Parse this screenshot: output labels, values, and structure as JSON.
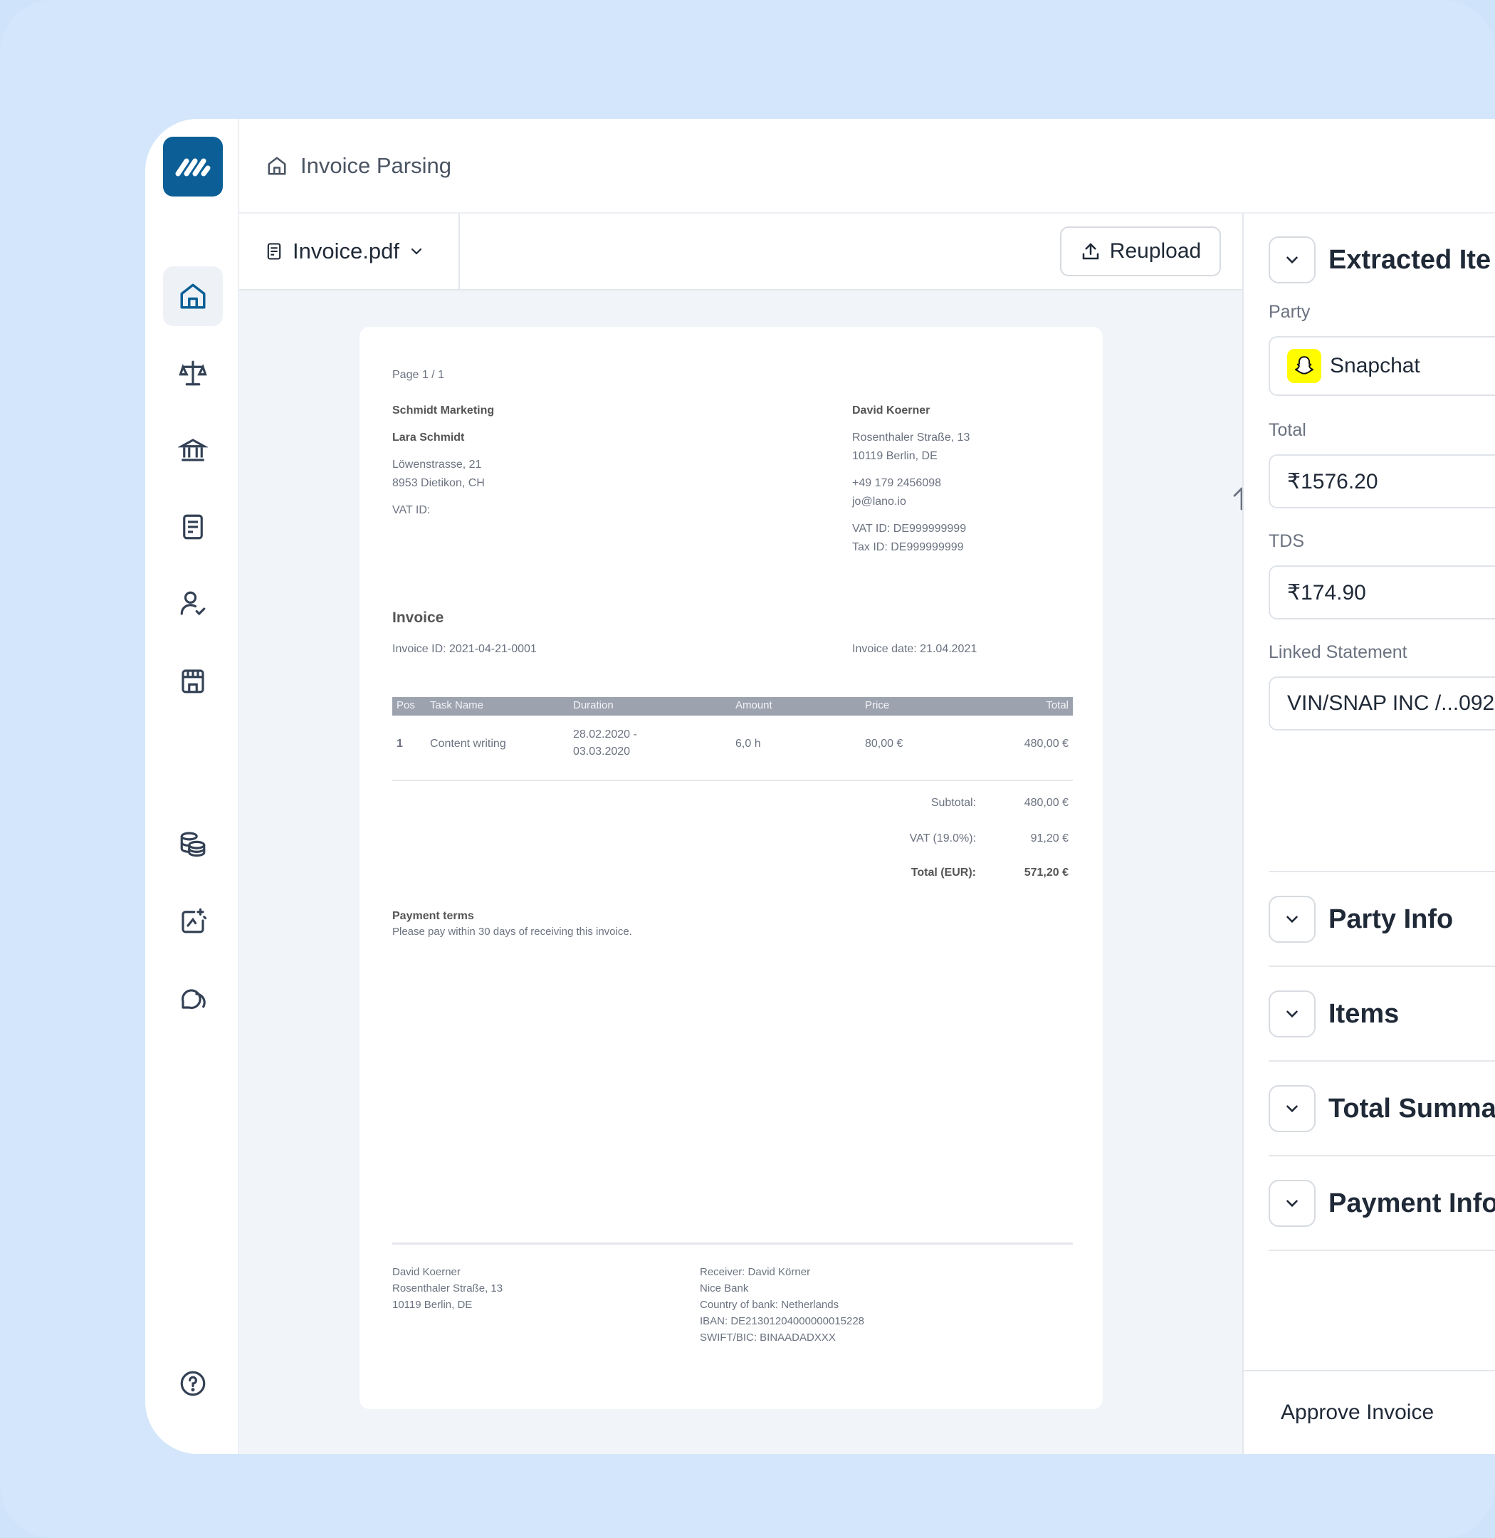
{
  "topbar": {
    "title": "Invoice Parsing",
    "icon": "home-icon"
  },
  "toolbar": {
    "file_name": "Invoice.pdf",
    "reupload_label": "Reupload"
  },
  "sidebar": {
    "items": [
      {
        "name": "home",
        "icon": "home-icon",
        "active": true
      },
      {
        "name": "legal",
        "icon": "scales-icon"
      },
      {
        "name": "bank",
        "icon": "bank-icon"
      },
      {
        "name": "documents",
        "icon": "document-icon"
      },
      {
        "name": "users",
        "icon": "user-check-icon"
      },
      {
        "name": "store",
        "icon": "store-icon"
      },
      {
        "name": "finance",
        "icon": "coins-icon"
      },
      {
        "name": "sparkle",
        "icon": "sparkle-icon"
      },
      {
        "name": "chat",
        "icon": "chat-icon"
      },
      {
        "name": "help",
        "icon": "help-icon"
      }
    ]
  },
  "invoice": {
    "page": "Page 1 / 1",
    "sender": {
      "company": "Schmidt Marketing",
      "name": "Lara Schmidt",
      "street": "Löwenstrasse, 21",
      "city": "8953 Dietikon, CH",
      "vat": "VAT ID:"
    },
    "recipient": {
      "name": "David Koerner",
      "street": "Rosenthaler Straße, 13",
      "city": "10119 Berlin, DE",
      "phone": "+49 179 2456098",
      "email": "jo@lano.io",
      "vat": "VAT ID: DE999999999",
      "tax": "Tax ID: DE999999999"
    },
    "heading": "Invoice",
    "invoice_id": "Invoice ID: 2021-04-21-0001",
    "invoice_date": "Invoice date: 21.04.2021",
    "columns": [
      "Pos",
      "Task Name",
      "Duration",
      "Amount",
      "Price",
      "Total"
    ],
    "rows": [
      {
        "pos": "1",
        "task": "Content writing",
        "duration_from": "28.02.2020 -",
        "duration_to": "03.03.2020",
        "amount": "6,0 h",
        "price": "80,00 €",
        "total": "480,00 €"
      }
    ],
    "subtotal_label": "Subtotal:",
    "subtotal": "480,00 €",
    "vat_label": "VAT (19.0%):",
    "vat_value": "91,20 €",
    "total_label": "Total (EUR):",
    "total_value": "571,20 €",
    "terms_title": "Payment terms",
    "terms_text": "Please pay within 30 days of receiving this invoice.",
    "footer_left": [
      "David Koerner",
      "Rosenthaler Straße, 13",
      "10119 Berlin, DE"
    ],
    "footer_right": [
      "Receiver: David Körner",
      "Nice Bank",
      "Country of bank: Netherlands",
      "IBAN: DE21301204000000015228",
      "SWIFT/BIC: BINAADADXXX"
    ]
  },
  "panel": {
    "extracted_title": "Extracted Ite",
    "party_label": "Party",
    "party_value": "Snapchat",
    "total_label": "Total",
    "total_value": "₹1576.20",
    "tds_label": "TDS",
    "tds_value": "₹174.90",
    "linked_label": "Linked Statement",
    "linked_value": "VIN/SNAP INC /...092",
    "sections": [
      "Party Info",
      "Items",
      "Total Summa",
      "Payment Info"
    ],
    "approve_label": "Approve Invoice"
  },
  "colors": {
    "brand": "#0b5f96",
    "background": "#cfe4fb",
    "snapchat": "#fffc00"
  }
}
